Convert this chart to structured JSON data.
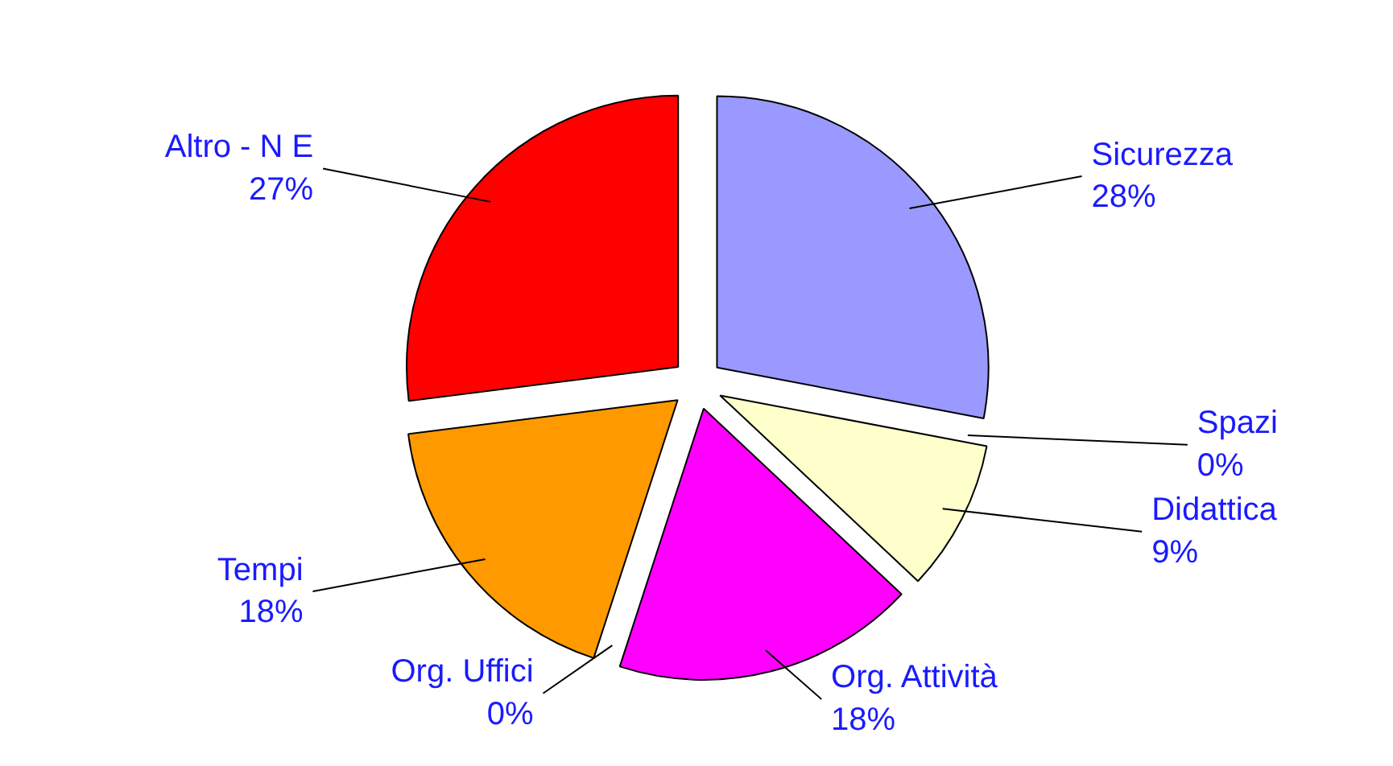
{
  "chart_data": {
    "type": "pie",
    "categories": [
      "Sicurezza",
      "Spazi",
      "Didattica",
      "Org. Attività",
      "Org. Uffici",
      "Tempi",
      "Altro - N E"
    ],
    "values": [
      28,
      0,
      9,
      18,
      0,
      18,
      27
    ],
    "colors": [
      "#9999ff",
      "#993366",
      "#ffffcc",
      "#ff00ff",
      "#ccffff",
      "#ff9900",
      "#ff0000"
    ],
    "value_labels": [
      "28%",
      "0%",
      "9%",
      "18%",
      "0%",
      "18%",
      "27%"
    ]
  }
}
